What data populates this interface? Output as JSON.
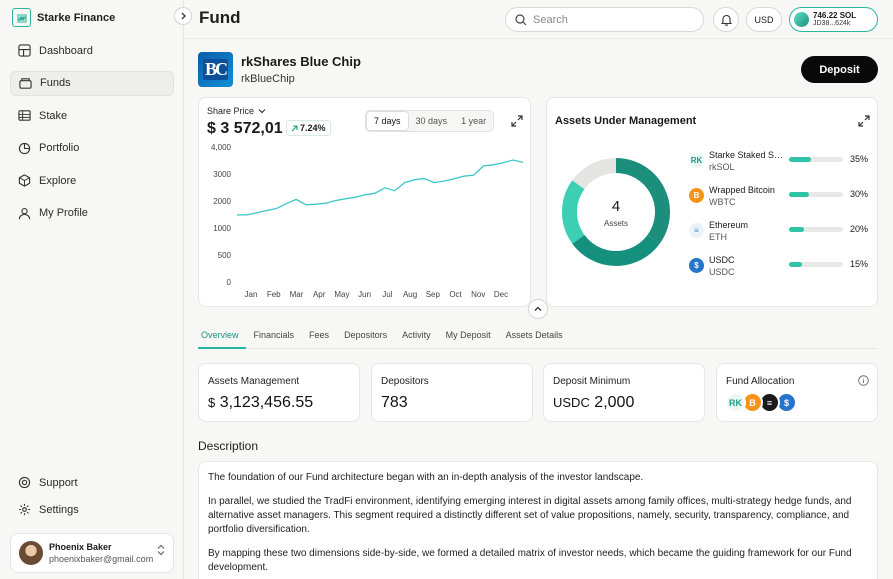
{
  "app": {
    "name": "Starke Finance"
  },
  "sidebar": {
    "items": [
      {
        "label": "Dashboard",
        "icon": "dashboard-icon"
      },
      {
        "label": "Funds",
        "icon": "funds-icon"
      },
      {
        "label": "Stake",
        "icon": "stake-icon"
      },
      {
        "label": "Portfolio",
        "icon": "portfolio-icon"
      },
      {
        "label": "Explore",
        "icon": "explore-icon"
      },
      {
        "label": "My Profile",
        "icon": "profile-icon"
      }
    ],
    "bottom_items": [
      {
        "label": "Support",
        "icon": "support-icon"
      },
      {
        "label": "Settings",
        "icon": "settings-icon"
      }
    ],
    "user": {
      "name": "Phoenix Baker",
      "email": "phoenixbaker@gmail.com"
    }
  },
  "header": {
    "title": "Fund",
    "search_placeholder": "Search",
    "currency": "USD",
    "wallet": {
      "balance": "746.22 SOL",
      "address": "JD38...624k"
    }
  },
  "fund": {
    "logo_text": "BC",
    "name": "rkShares Blue Chip",
    "ticker": "rkBlueChip",
    "deposit_label": "Deposit"
  },
  "price_card": {
    "label": "Share Price",
    "price": "$ 3 572,01",
    "change": "7.24%",
    "ranges": [
      "7 days",
      "30 days",
      "1 year"
    ]
  },
  "chart_data": {
    "type": "line",
    "categories": [
      "Jan",
      "Feb",
      "Mar",
      "Apr",
      "May",
      "Jun",
      "Jul",
      "Aug",
      "Sep",
      "Oct",
      "Nov",
      "Dec"
    ],
    "y_ticks": [
      "0",
      "500",
      "1000",
      "2000",
      "3000",
      "4,000"
    ],
    "ylim": [
      0,
      4000
    ],
    "x": [
      0,
      0.4,
      0.8,
      1.2,
      1.6,
      2.0,
      2.4,
      2.8,
      3.2,
      3.6,
      4.0,
      4.4,
      4.8,
      5.2,
      5.6,
      6.0,
      6.4,
      6.8,
      7.2,
      7.6,
      8.0,
      8.4,
      8.8,
      9.2,
      9.6,
      10.0,
      10.4,
      10.8,
      11.2,
      11.6
    ],
    "values": [
      1480,
      1490,
      1560,
      1650,
      1720,
      1900,
      2060,
      1860,
      1880,
      1920,
      2020,
      2080,
      2140,
      2230,
      2290,
      2490,
      2380,
      2680,
      2790,
      2830,
      2680,
      2740,
      2820,
      2920,
      2960,
      3300,
      3340,
      3420,
      3520,
      3430
    ],
    "series_color": "#3cc7c9",
    "grid": false
  },
  "aum": {
    "title": "Assets Under Management",
    "count": "4",
    "count_label": "Assets",
    "assets": [
      {
        "name": "Starke Staked SOL",
        "symbol": "rkSOL",
        "pct": "35%",
        "value": 35,
        "icon_text": "RK",
        "icon_bg": "#eaf7f4",
        "icon_color": "#1f9b87"
      },
      {
        "name": "Wrapped Bitcoin",
        "symbol": "WBTC",
        "pct": "30%",
        "value": 30,
        "icon_text": "B",
        "icon_bg": "#f7931a",
        "icon_color": "#ffffff"
      },
      {
        "name": "Ethereum",
        "symbol": "ETH",
        "pct": "20%",
        "value": 20,
        "icon_text": "≡",
        "icon_bg": "#eaf3fb",
        "icon_color": "#3a8dd6"
      },
      {
        "name": "USDC",
        "symbol": "USDC",
        "pct": "15%",
        "value": 15,
        "icon_text": "$",
        "icon_bg": "#2775ca",
        "icon_color": "#ffffff"
      }
    ],
    "donut_colors": [
      "#1b8f7c",
      "#16907e",
      "#3ccfb4",
      "#e4e4e2"
    ]
  },
  "tabs": [
    "Overview",
    "Financials",
    "Fees",
    "Depositors",
    "Activity",
    "My Deposit",
    "Assets Details"
  ],
  "stats": {
    "assets_management": {
      "label": "Assets Management",
      "unit": "$",
      "value": "3,123,456.55"
    },
    "depositors": {
      "label": "Depositors",
      "value": "783"
    },
    "deposit_minimum": {
      "label": "Deposit Minimum",
      "unit": "USDC",
      "value": "2,000"
    },
    "fund_allocation": {
      "label": "Fund Allocation"
    }
  },
  "description": {
    "title": "Description",
    "paragraphs": [
      "The foundation of our Fund architecture began with an in-depth analysis of the investor landscape.",
      "In parallel, we studied the TradFi environment, identifying emerging interest in digital assets among family offices, multi-strategy hedge funds, and alternative asset managers. This segment required a distinctly different set of value propositions, namely, security, transparency, compliance, and portfolio diversification.",
      "By mapping these two dimensions side-by-side, we formed a detailed matrix of investor needs, which became the guiding framework for our Fund development."
    ]
  }
}
